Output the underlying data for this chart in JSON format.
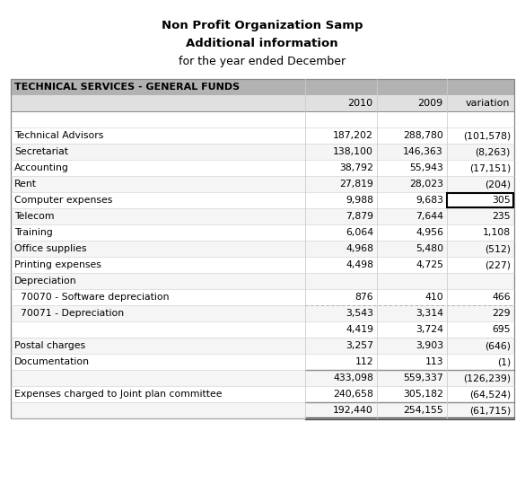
{
  "title1": "Non Profit Organization Samp",
  "title2": "Additional information",
  "title3": "for the year ended December",
  "section_header": "TECHNICAL SERVICES - GENERAL FUNDS",
  "col_headers": [
    "2010",
    "2009",
    "variation"
  ],
  "rows": [
    {
      "label": "Technical Advisors",
      "v2010": "187,202",
      "v2009": "288,780",
      "var": "(101,578)",
      "highlight": false,
      "indent": false
    },
    {
      "label": "Secretariat",
      "v2010": "138,100",
      "v2009": "146,363",
      "var": "(8,263)",
      "highlight": false,
      "indent": false
    },
    {
      "label": "Accounting",
      "v2010": "38,792",
      "v2009": "55,943",
      "var": "(17,151)",
      "highlight": false,
      "indent": false
    },
    {
      "label": "Rent",
      "v2010": "27,819",
      "v2009": "28,023",
      "var": "(204)",
      "highlight": false,
      "indent": false
    },
    {
      "label": "Computer expenses",
      "v2010": "9,988",
      "v2009": "9,683",
      "var": "305",
      "highlight": true,
      "indent": false
    },
    {
      "label": "Telecom",
      "v2010": "7,879",
      "v2009": "7,644",
      "var": "235",
      "highlight": false,
      "indent": false
    },
    {
      "label": "Training",
      "v2010": "6,064",
      "v2009": "4,956",
      "var": "1,108",
      "highlight": false,
      "indent": false
    },
    {
      "label": "Office supplies",
      "v2010": "4,968",
      "v2009": "5,480",
      "var": "(512)",
      "highlight": false,
      "indent": false
    },
    {
      "label": "Printing expenses",
      "v2010": "4,498",
      "v2009": "4,725",
      "var": "(227)",
      "highlight": false,
      "indent": false
    },
    {
      "label": "Depreciation",
      "v2010": "",
      "v2009": "",
      "var": "",
      "highlight": false,
      "indent": false
    },
    {
      "label": "  70070 - Software depreciation",
      "v2010": "876",
      "v2009": "410",
      "var": "466",
      "highlight": false,
      "indent": true
    },
    {
      "label": "  70071 - Depreciation",
      "v2010": "3,543",
      "v2009": "3,314",
      "var": "229",
      "highlight": false,
      "indent": true,
      "dotted_above": true
    },
    {
      "label": "",
      "v2010": "4,419",
      "v2009": "3,724",
      "var": "695",
      "highlight": false,
      "indent": false
    },
    {
      "label": "Postal charges",
      "v2010": "3,257",
      "v2009": "3,903",
      "var": "(646)",
      "highlight": false,
      "indent": false
    },
    {
      "label": "Documentation",
      "v2010": "112",
      "v2009": "113",
      "var": "(1)",
      "highlight": false,
      "indent": false
    },
    {
      "label": "",
      "v2010": "433,098",
      "v2009": "559,337",
      "var": "(126,239)",
      "highlight": false,
      "indent": false,
      "top_line": true
    },
    {
      "label": "Expenses charged to Joint plan committee",
      "v2010": "240,658",
      "v2009": "305,182",
      "var": "(64,524)",
      "highlight": false,
      "indent": false
    },
    {
      "label": "",
      "v2010": "192,440",
      "v2009": "254,155",
      "var": "(61,715)",
      "highlight": false,
      "indent": false,
      "top_line": true,
      "bottom_line": true
    }
  ],
  "bg_color": "#ffffff",
  "section_bg": "#b2b2b2",
  "colhdr_bg": "#e0e0e0",
  "text_color": "#000000",
  "border_color": "#888888",
  "grid_color": "#cccccc"
}
